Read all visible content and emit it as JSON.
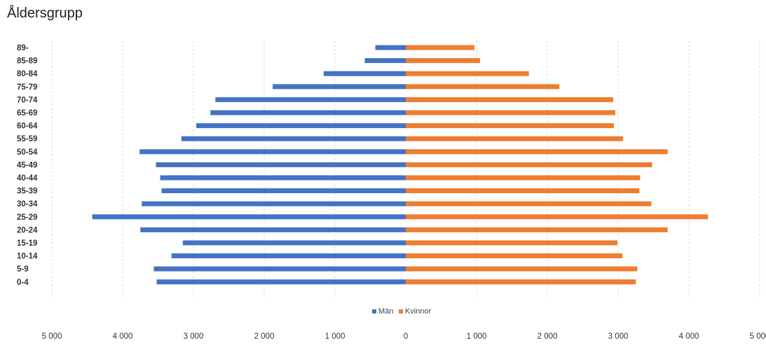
{
  "chart_data": {
    "type": "bar",
    "orientation": "horizontal-population-pyramid",
    "title": "Åldersgrupp",
    "categories": [
      "0-4",
      "5-9",
      "10-14",
      "15-19",
      "20-24",
      "25-29",
      "30-34",
      "35-39",
      "40-44",
      "45-49",
      "50-54",
      "55-59",
      "60-64",
      "65-69",
      "70-74",
      "75-79",
      "80-84",
      "85-89",
      "89-"
    ],
    "series": [
      {
        "name": "Män",
        "color": "#4472c4",
        "values": [
          3520,
          3560,
          3310,
          3150,
          3750,
          4430,
          3730,
          3450,
          3470,
          3530,
          3760,
          3170,
          2960,
          2760,
          2690,
          1880,
          1160,
          580,
          430
        ]
      },
      {
        "name": "Kvinnor",
        "color": "#ed7d31",
        "values": [
          3250,
          3270,
          3060,
          2990,
          3700,
          4270,
          3470,
          3300,
          3310,
          3480,
          3700,
          3070,
          2940,
          2960,
          2930,
          2170,
          1740,
          1050,
          970
        ]
      }
    ],
    "xlim": [
      -5000,
      5000
    ],
    "xticks": [
      -5000,
      -4000,
      -3000,
      -2000,
      -1000,
      0,
      1000,
      2000,
      3000,
      4000,
      5000
    ],
    "xtick_labels": [
      "5 000",
      "4 000",
      "3 000",
      "2 000",
      "1 000",
      "0",
      "1 000",
      "2 000",
      "3 000",
      "4 000",
      "5 000"
    ],
    "grid": true,
    "legend_position": "bottom"
  }
}
